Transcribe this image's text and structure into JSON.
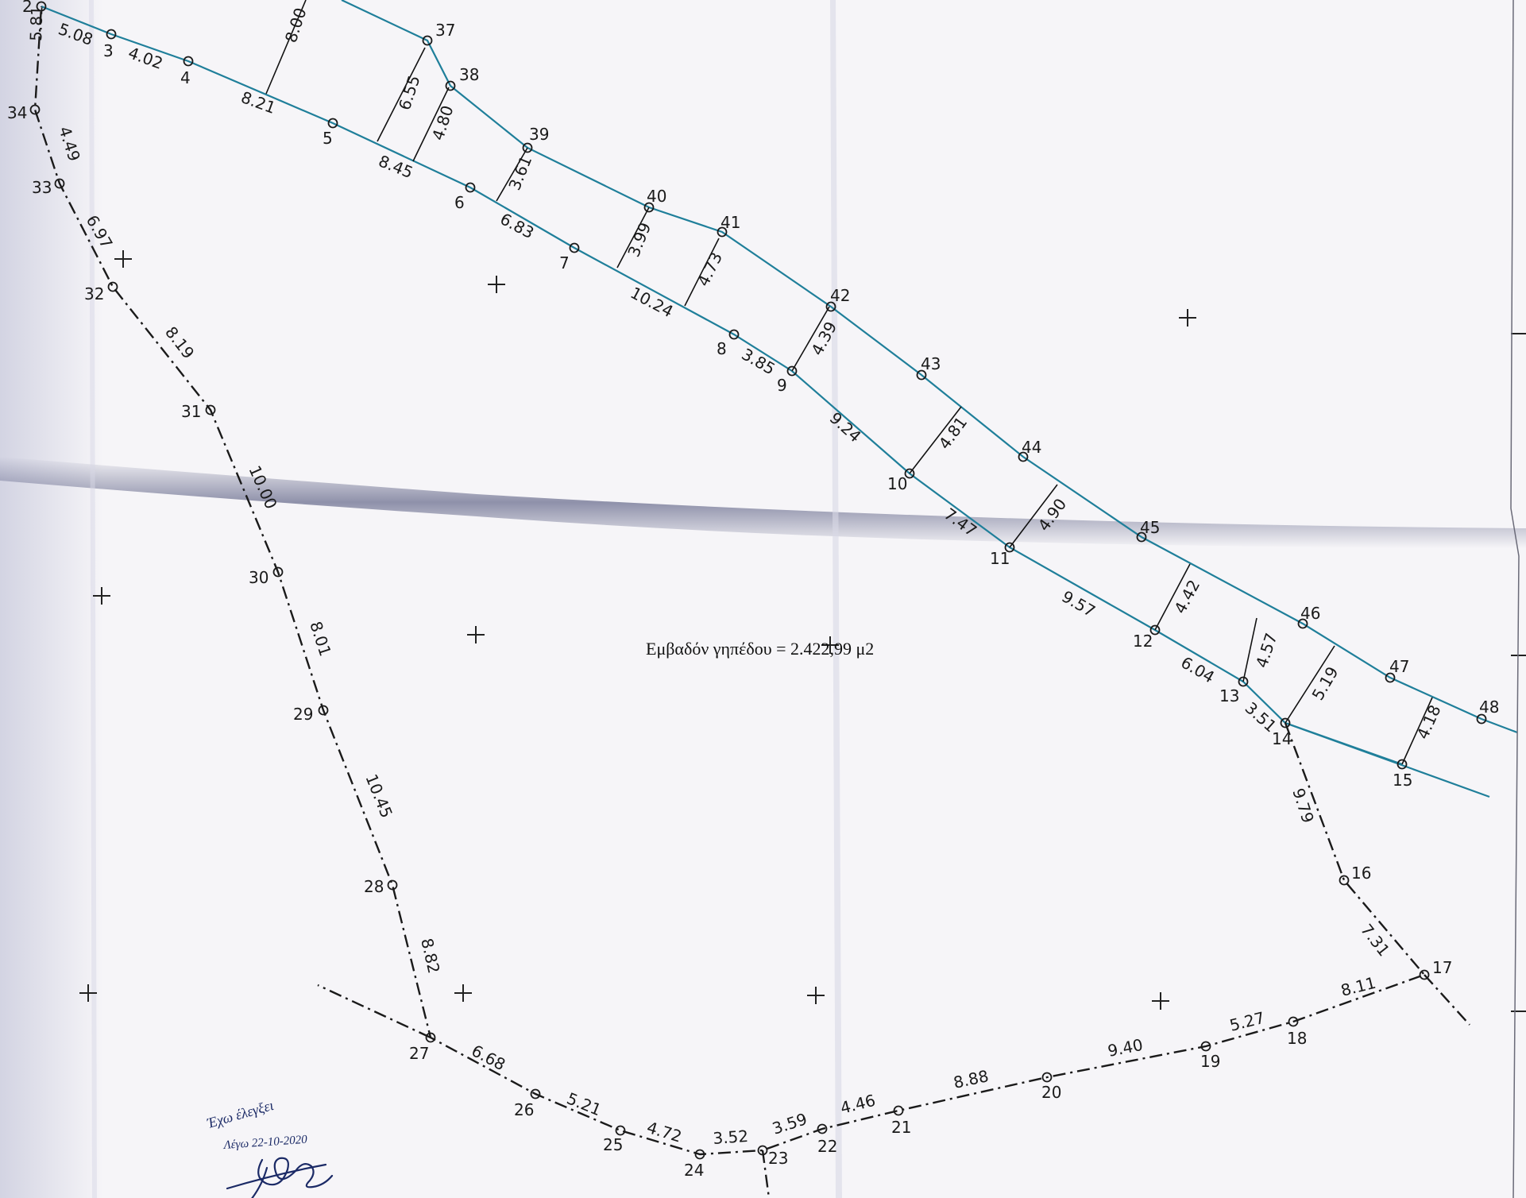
{
  "colors": {
    "paper": "#f6f5f8",
    "road": "#1f7f9a",
    "boundary": "#1a1a1a",
    "ink": "#1b2a66",
    "fold": "#3a3f6a"
  },
  "area_text": "Εμβαδόν γηπέδου = 2.422,99 μ2",
  "signature": {
    "line1": "Έχω έλεγξει",
    "line2": "Λέγω 22-10-2020"
  },
  "points": [
    {
      "id": "2",
      "label": "2"
    },
    {
      "id": "3",
      "label": "3"
    },
    {
      "id": "4",
      "label": "4"
    },
    {
      "id": "5",
      "label": "5"
    },
    {
      "id": "6",
      "label": "6"
    },
    {
      "id": "7",
      "label": "7"
    },
    {
      "id": "8",
      "label": "8"
    },
    {
      "id": "9",
      "label": "9"
    },
    {
      "id": "10",
      "label": "10"
    },
    {
      "id": "11",
      "label": "11"
    },
    {
      "id": "12",
      "label": "12"
    },
    {
      "id": "13",
      "label": "13"
    },
    {
      "id": "14",
      "label": "14"
    },
    {
      "id": "15",
      "label": "15"
    },
    {
      "id": "16",
      "label": "16"
    },
    {
      "id": "17",
      "label": "17"
    },
    {
      "id": "18",
      "label": "18"
    },
    {
      "id": "19",
      "label": "19"
    },
    {
      "id": "20",
      "label": "20"
    },
    {
      "id": "21",
      "label": "21"
    },
    {
      "id": "22",
      "label": "22"
    },
    {
      "id": "23",
      "label": "23"
    },
    {
      "id": "24",
      "label": "24"
    },
    {
      "id": "25",
      "label": "25"
    },
    {
      "id": "26",
      "label": "26"
    },
    {
      "id": "27",
      "label": "27"
    },
    {
      "id": "28",
      "label": "28"
    },
    {
      "id": "29",
      "label": "29"
    },
    {
      "id": "30",
      "label": "30"
    },
    {
      "id": "31",
      "label": "31"
    },
    {
      "id": "32",
      "label": "32"
    },
    {
      "id": "33",
      "label": "33"
    },
    {
      "id": "34",
      "label": "34"
    },
    {
      "id": "37",
      "label": "37"
    },
    {
      "id": "38",
      "label": "38"
    },
    {
      "id": "39",
      "label": "39"
    },
    {
      "id": "40",
      "label": "40"
    },
    {
      "id": "41",
      "label": "41"
    },
    {
      "id": "42",
      "label": "42"
    },
    {
      "id": "43",
      "label": "43"
    },
    {
      "id": "44",
      "label": "44"
    },
    {
      "id": "45",
      "label": "45"
    },
    {
      "id": "46",
      "label": "46"
    },
    {
      "id": "47",
      "label": "47"
    },
    {
      "id": "48",
      "label": "48"
    }
  ],
  "distances": [
    {
      "between": "2-3",
      "value": "5.08"
    },
    {
      "between": "3-4",
      "value": "4.02"
    },
    {
      "between": "4-5",
      "value": "8.21"
    },
    {
      "between": "5-6",
      "value": "8.45"
    },
    {
      "between": "6-7",
      "value": "6.83"
    },
    {
      "between": "7-8",
      "value": "10.24"
    },
    {
      "between": "8-9",
      "value": "3.85"
    },
    {
      "between": "9-10",
      "value": "9.24"
    },
    {
      "between": "10-11",
      "value": "7.47"
    },
    {
      "between": "11-12",
      "value": "9.57"
    },
    {
      "between": "12-13",
      "value": "6.04"
    },
    {
      "between": "13-14",
      "value": "3.51"
    },
    {
      "between": "14-16",
      "value": "9.79"
    },
    {
      "between": "16-17",
      "value": "7.31"
    },
    {
      "between": "17-18",
      "value": "8.11"
    },
    {
      "between": "18-19",
      "value": "5.27"
    },
    {
      "between": "19-20",
      "value": "9.40"
    },
    {
      "between": "20-21",
      "value": "8.88"
    },
    {
      "between": "21-22",
      "value": "4.46"
    },
    {
      "between": "22-23",
      "value": "3.59"
    },
    {
      "between": "23-24",
      "value": "3.52"
    },
    {
      "between": "24-25",
      "value": "4.72"
    },
    {
      "between": "25-26",
      "value": "5.21"
    },
    {
      "between": "26-27",
      "value": "6.68"
    },
    {
      "between": "27-28",
      "value": "8.82"
    },
    {
      "between": "28-29",
      "value": "10.45"
    },
    {
      "between": "29-30",
      "value": "8.01"
    },
    {
      "between": "30-31",
      "value": "10.00"
    },
    {
      "between": "31-32",
      "value": "8.19"
    },
    {
      "between": "32-33",
      "value": "6.97"
    },
    {
      "between": "33-34",
      "value": "4.49"
    },
    {
      "between": "34-2",
      "value": "5.81"
    },
    {
      "between": "width-a",
      "value": "8.00"
    },
    {
      "between": "width-b",
      "value": "6.55"
    },
    {
      "between": "width-c",
      "value": "4.80"
    },
    {
      "between": "width-d",
      "value": "3.61"
    },
    {
      "between": "width-e",
      "value": "3.99"
    },
    {
      "between": "width-f",
      "value": "4.73"
    },
    {
      "between": "width-g",
      "value": "4.39"
    },
    {
      "between": "width-h",
      "value": "4.81"
    },
    {
      "between": "width-i",
      "value": "4.90"
    },
    {
      "between": "width-j",
      "value": "4.42"
    },
    {
      "between": "width-k",
      "value": "4.57"
    },
    {
      "between": "width-l",
      "value": "5.19"
    },
    {
      "between": "width-m",
      "value": "4.18"
    }
  ]
}
